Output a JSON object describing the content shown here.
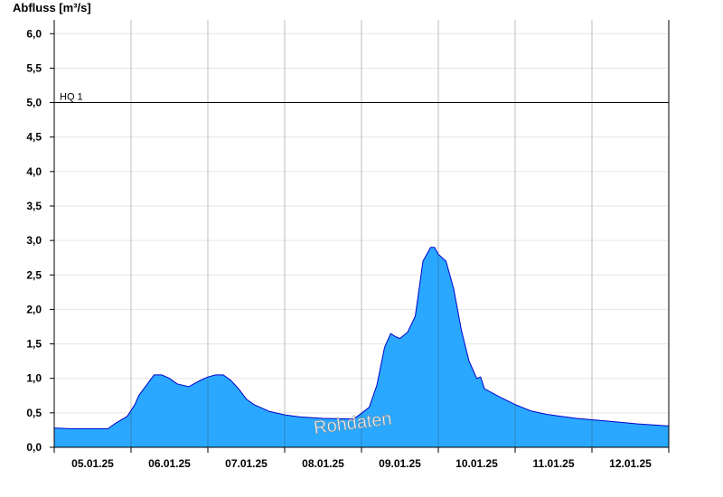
{
  "chart_data": {
    "type": "area",
    "ylabel": "Abfluss [m³/s]",
    "ylim": [
      0,
      6.2
    ],
    "y_ticks": [
      "0,0",
      "0,5",
      "1,0",
      "1,5",
      "2,0",
      "2,5",
      "3,0",
      "3,5",
      "4,0",
      "4,5",
      "5,0",
      "5,5",
      "6,0"
    ],
    "x_tick_labels": [
      "05.01.25",
      "06.01.25",
      "07.01.25",
      "08.01.25",
      "09.01.25",
      "10.01.25",
      "11.01.25",
      "12.01.25"
    ],
    "x_range_days": [
      0,
      8
    ],
    "grid": true,
    "fill_color": "#2aa8ff",
    "line_color": "#0000cc",
    "reference_line": {
      "label": "HQ 1",
      "value": 5.0
    },
    "watermark": "Rohdaten",
    "series": [
      {
        "x": [
          0,
          0.2,
          0.5,
          0.7,
          0.8,
          0.95,
          1.05,
          1.1,
          1.2,
          1.3,
          1.4,
          1.5,
          1.6,
          1.75,
          1.9,
          2.0,
          2.1,
          2.2,
          2.3,
          2.4,
          2.5,
          2.6,
          2.8,
          3.0,
          3.2,
          3.5,
          3.9,
          4.1,
          4.2,
          4.3,
          4.38,
          4.45,
          4.5,
          4.6,
          4.7,
          4.8,
          4.9,
          4.95,
          5.0,
          5.1,
          5.2,
          5.3,
          5.4,
          5.5,
          5.55,
          5.6,
          5.8,
          6.0,
          6.2,
          6.4,
          6.6,
          6.8,
          7.0,
          7.3,
          7.6,
          8.0
        ],
        "values": [
          0.28,
          0.27,
          0.27,
          0.27,
          0.35,
          0.45,
          0.62,
          0.75,
          0.9,
          1.05,
          1.05,
          1.0,
          0.92,
          0.88,
          0.97,
          1.02,
          1.05,
          1.05,
          0.97,
          0.85,
          0.7,
          0.62,
          0.52,
          0.47,
          0.44,
          0.42,
          0.41,
          0.58,
          0.9,
          1.45,
          1.65,
          1.6,
          1.58,
          1.67,
          1.9,
          2.7,
          2.9,
          2.9,
          2.8,
          2.7,
          2.3,
          1.7,
          1.25,
          1.0,
          1.02,
          0.85,
          0.73,
          0.62,
          0.53,
          0.48,
          0.45,
          0.42,
          0.4,
          0.37,
          0.34,
          0.31
        ]
      }
    ]
  }
}
